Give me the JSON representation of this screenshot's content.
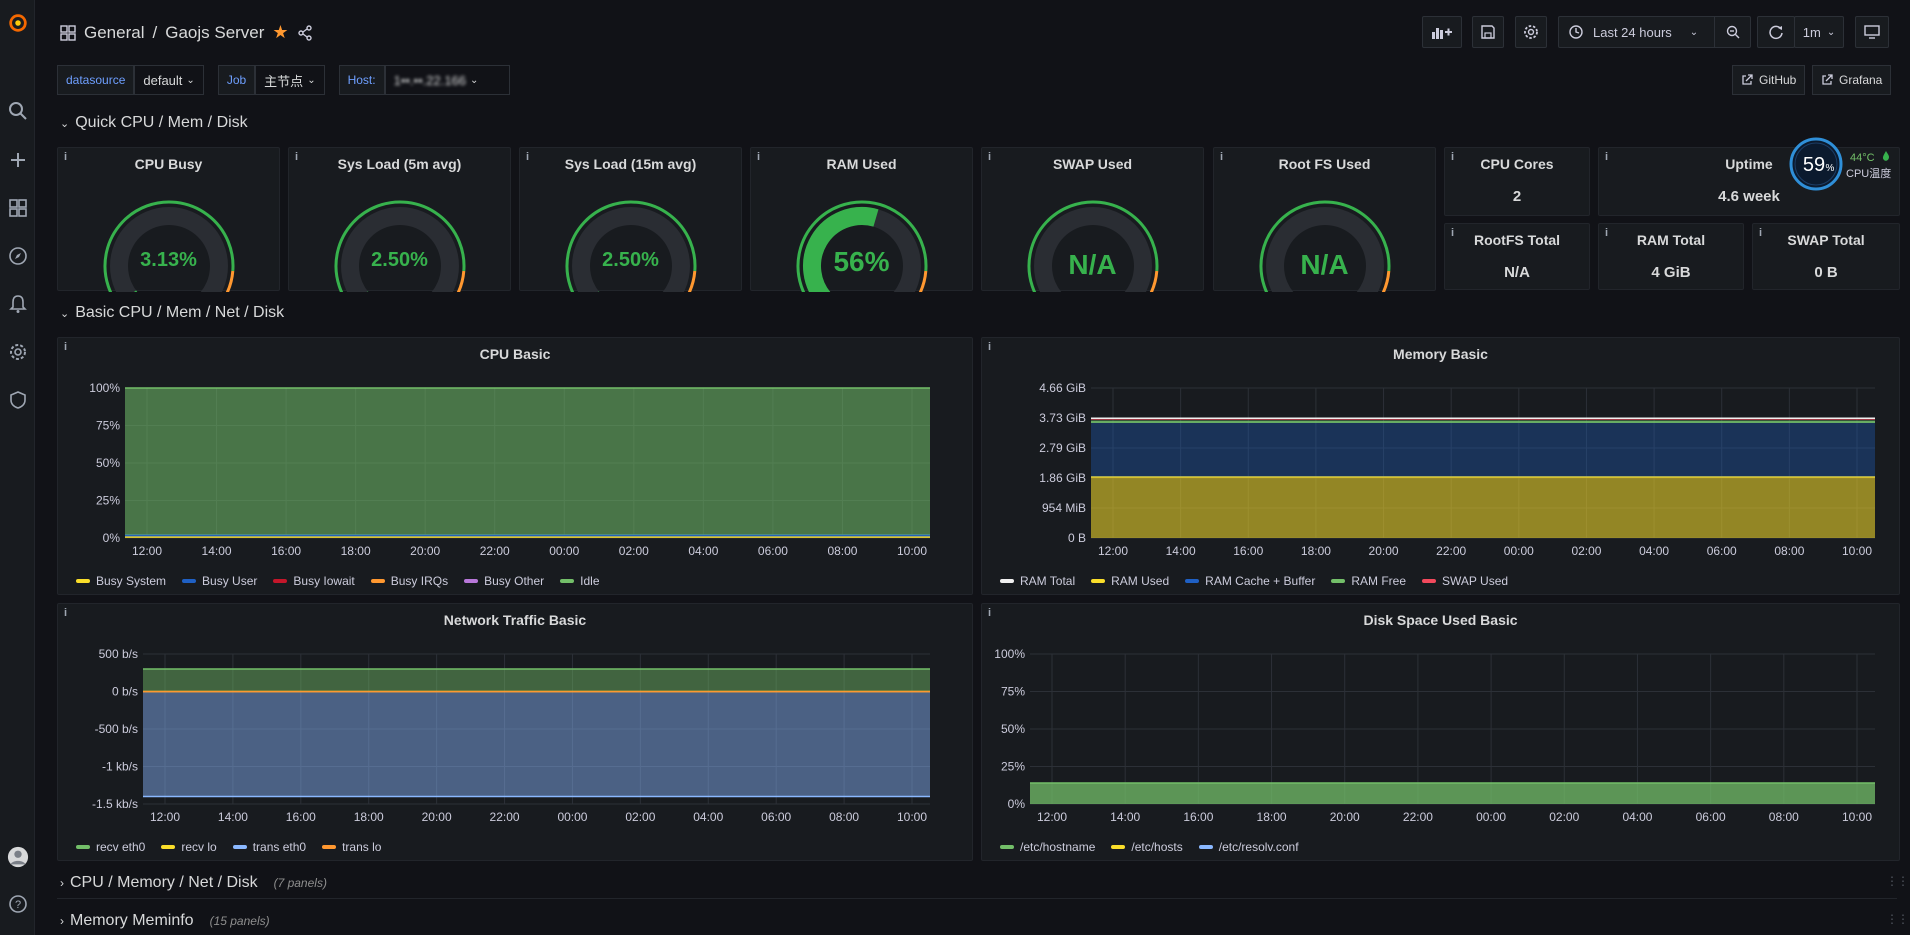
{
  "header": {
    "folder": "General",
    "separator": "/",
    "title": "Gaojs Server",
    "time_range": "Last 24 hours",
    "refresh": "1m"
  },
  "variables": [
    {
      "label": "datasource",
      "value": "default"
    },
    {
      "label": "Job",
      "value": "主节点"
    },
    {
      "label": "Host:",
      "value": "1••.••.22.166"
    }
  ],
  "links": {
    "github": "GitHub",
    "grafana": "Grafana"
  },
  "rows": {
    "quick": "Quick CPU / Mem / Disk",
    "basic": "Basic CPU / Mem / Net / Disk",
    "cmnd": "CPU / Memory / Net / Disk",
    "cmnd_count": "(7 panels)",
    "meminfo": "Memory Meminfo",
    "meminfo_count": "(15 panels)"
  },
  "gauges": [
    {
      "title": "CPU Busy",
      "value": "3.13%",
      "fraction": 0.0313
    },
    {
      "title": "Sys Load (5m avg)",
      "value": "2.50%",
      "fraction": 0.025
    },
    {
      "title": "Sys Load (15m avg)",
      "value": "2.50%",
      "fraction": 0.025
    },
    {
      "title": "RAM Used",
      "value": "56%",
      "fraction": 0.56
    },
    {
      "title": "SWAP Used",
      "value": "N/A",
      "fraction": 0
    },
    {
      "title": "Root FS Used",
      "value": "N/A",
      "fraction": 0
    }
  ],
  "stats": {
    "cpu_cores": {
      "title": "CPU Cores",
      "value": "2"
    },
    "uptime": {
      "title": "Uptime",
      "value": "4.6 week"
    },
    "rootfs_total": {
      "title": "RootFS Total",
      "value": "N/A"
    },
    "ram_total": {
      "title": "RAM Total",
      "value": "4 GiB"
    },
    "swap_total": {
      "title": "SWAP Total",
      "value": "0 B"
    }
  },
  "cpu_widget": {
    "percent": "59",
    "unit": "%",
    "temp": "44°C",
    "label": "CPU温度"
  },
  "colors": {
    "green": "#73bf69",
    "yellow": "#fade2a",
    "blue": "#1f60c4",
    "orange": "#ff9830",
    "red": "#f2495c",
    "purple": "#b877d9",
    "white": "#f0f0f0",
    "lightblue": "#8ab8ff"
  },
  "chart_data": [
    {
      "type": "area",
      "title": "CPU Basic",
      "x": [
        "12:00",
        "14:00",
        "16:00",
        "18:00",
        "20:00",
        "22:00",
        "00:00",
        "02:00",
        "04:00",
        "06:00",
        "08:00",
        "10:00"
      ],
      "yticks": [
        "100%",
        "75%",
        "50%",
        "25%",
        "0%"
      ],
      "ylim": [
        0,
        100
      ],
      "series": [
        {
          "name": "Busy System",
          "color": "#fade2a",
          "value": 1
        },
        {
          "name": "Busy User",
          "color": "#1f60c4",
          "value": 1
        },
        {
          "name": "Busy Iowait",
          "color": "#c4162a",
          "value": 0
        },
        {
          "name": "Busy IRQs",
          "color": "#ff9830",
          "value": 0
        },
        {
          "name": "Busy Other",
          "color": "#b877d9",
          "value": 0
        },
        {
          "name": "Idle",
          "color": "#73bf69",
          "value": 98
        }
      ]
    },
    {
      "type": "area",
      "title": "Memory Basic",
      "x": [
        "12:00",
        "14:00",
        "16:00",
        "18:00",
        "20:00",
        "22:00",
        "00:00",
        "02:00",
        "04:00",
        "06:00",
        "08:00",
        "10:00"
      ],
      "yticks": [
        "4.66 GiB",
        "3.73 GiB",
        "2.79 GiB",
        "1.86 GiB",
        "954 MiB",
        "0 B"
      ],
      "ylim": [
        0,
        4.66
      ],
      "series": [
        {
          "name": "RAM Total",
          "color": "#f0f0f0",
          "value": 3.7
        },
        {
          "name": "RAM Used",
          "color": "#fade2a",
          "value": 1.9
        },
        {
          "name": "RAM Cache + Buffer",
          "color": "#1f60c4",
          "value": 1.7
        },
        {
          "name": "RAM Free",
          "color": "#73bf69",
          "value": 0.05
        },
        {
          "name": "SWAP Used",
          "color": "#f2495c",
          "value": 0
        }
      ]
    },
    {
      "type": "area",
      "title": "Network Traffic Basic",
      "x": [
        "12:00",
        "14:00",
        "16:00",
        "18:00",
        "20:00",
        "22:00",
        "00:00",
        "02:00",
        "04:00",
        "06:00",
        "08:00",
        "10:00"
      ],
      "yticks": [
        "500 b/s",
        "0 b/s",
        "-500 b/s",
        "-1 kb/s",
        "-1.5 kb/s"
      ],
      "ylim": [
        -1500,
        500
      ],
      "series": [
        {
          "name": "recv eth0",
          "color": "#73bf69",
          "value": 300
        },
        {
          "name": "recv lo",
          "color": "#fade2a",
          "value": 0
        },
        {
          "name": "trans eth0",
          "color": "#8ab8ff",
          "value": -1400
        },
        {
          "name": "trans lo",
          "color": "#ff9830",
          "value": 0
        }
      ]
    },
    {
      "type": "area",
      "title": "Disk Space Used Basic",
      "x": [
        "12:00",
        "14:00",
        "16:00",
        "18:00",
        "20:00",
        "22:00",
        "00:00",
        "02:00",
        "04:00",
        "06:00",
        "08:00",
        "10:00"
      ],
      "yticks": [
        "100%",
        "75%",
        "50%",
        "25%",
        "0%"
      ],
      "ylim": [
        0,
        100
      ],
      "series": [
        {
          "name": "/etc/hostname",
          "color": "#73bf69",
          "value": 14
        },
        {
          "name": "/etc/hosts",
          "color": "#fade2a",
          "value": 14
        },
        {
          "name": "/etc/resolv.conf",
          "color": "#8ab8ff",
          "value": 14
        }
      ]
    }
  ]
}
